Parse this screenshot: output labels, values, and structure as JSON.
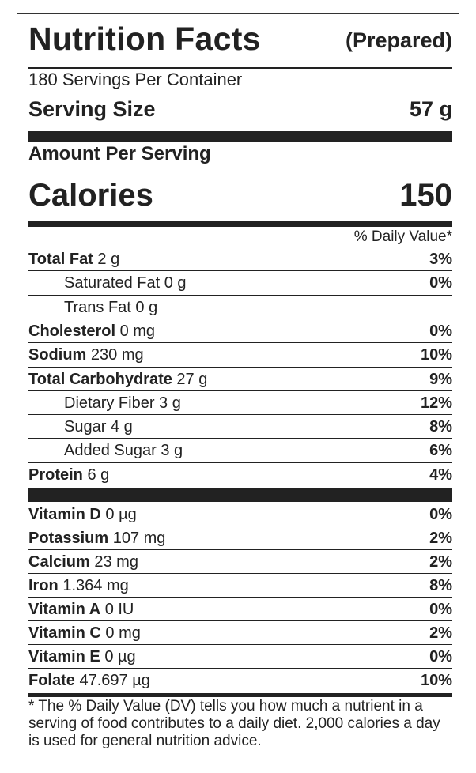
{
  "header": {
    "title": "Nutrition Facts",
    "subtitle": "(Prepared)"
  },
  "servings_per_container": "180 Servings Per Container",
  "serving_size": {
    "label": "Serving Size",
    "value": "57 g"
  },
  "amount_per_serving": "Amount Per Serving",
  "calories": {
    "label": "Calories",
    "value": "150"
  },
  "daily_value_header": "% Daily Value*",
  "nutrients": [
    {
      "name": "Total Fat",
      "amount": " 2 g",
      "dv": "3%"
    },
    {
      "name": "Saturated Fat 0 g",
      "amount": "",
      "dv": "0%"
    },
    {
      "name": "Trans Fat 0 g",
      "amount": "",
      "dv": ""
    },
    {
      "name": "Cholesterol",
      "amount": " 0 mg",
      "dv": "0%"
    },
    {
      "name": "Sodium",
      "amount": " 230 mg",
      "dv": "10%"
    },
    {
      "name": "Total Carbohydrate",
      "amount": " 27 g",
      "dv": "9%"
    },
    {
      "name": "Dietary Fiber 3 g",
      "amount": "",
      "dv": "12%"
    },
    {
      "name": "Sugar 4 g",
      "amount": "",
      "dv": "8%"
    },
    {
      "name": "Added Sugar 3 g",
      "amount": "",
      "dv": "6%"
    },
    {
      "name": "Protein",
      "amount": " 6 g",
      "dv": "4%"
    }
  ],
  "vitamins": [
    {
      "name": "Vitamin D",
      "amount": " 0 µg",
      "dv": "0%"
    },
    {
      "name": "Potassium",
      "amount": " 107 mg",
      "dv": "2%"
    },
    {
      "name": "Calcium",
      "amount": " 23 mg",
      "dv": "2%"
    },
    {
      "name": "Iron",
      "amount": " 1.364 mg",
      "dv": "8%"
    },
    {
      "name": "Vitamin A",
      "amount": " 0 IU",
      "dv": "0%"
    },
    {
      "name": "Vitamin C",
      "amount": " 0 mg",
      "dv": "2%"
    },
    {
      "name": "Vitamin E",
      "amount": " 0 µg",
      "dv": "0%"
    },
    {
      "name": "Folate",
      "amount": " 47.697 µg",
      "dv": "10%"
    }
  ],
  "footnote": "* The % Daily Value (DV) tells you how much a nutrient in a serving of food contributes to a daily diet. 2,000 calories a day is used for general nutrition advice."
}
